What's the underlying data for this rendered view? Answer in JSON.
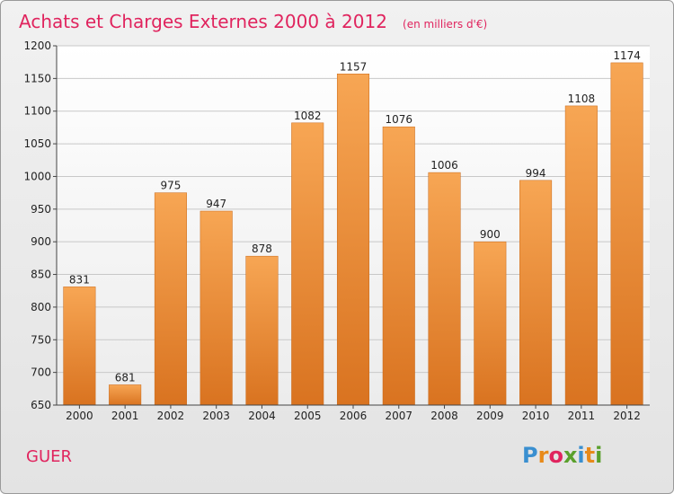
{
  "title": "Achats et Charges Externes 2000 à 2012",
  "unit": "(en milliers d'€)",
  "commune": "GUER",
  "logo": {
    "text": "Proxiti",
    "letters": [
      "P",
      "r",
      "o",
      "x",
      "i",
      "t",
      "i"
    ],
    "colors": [
      "#3a8fd0",
      "#e88a1a",
      "#e0245e",
      "#5aa02c",
      "#3a8fd0",
      "#e88a1a",
      "#5aa02c"
    ]
  },
  "chart_data": {
    "type": "bar",
    "categories": [
      "2000",
      "2001",
      "2002",
      "2003",
      "2004",
      "2005",
      "2006",
      "2007",
      "2008",
      "2009",
      "2010",
      "2011",
      "2012"
    ],
    "values": [
      831,
      681,
      975,
      947,
      878,
      1082,
      1157,
      1076,
      1006,
      900,
      994,
      1108,
      1174
    ],
    "title": "Achats et Charges Externes 2000 à 2012",
    "ylim": [
      650,
      1200
    ],
    "yticks": [
      650,
      700,
      750,
      800,
      850,
      900,
      950,
      1000,
      1050,
      1100,
      1150,
      1200
    ],
    "grid": true,
    "bar_color_light": "#f7a654",
    "bar_color_dark": "#d97320"
  }
}
